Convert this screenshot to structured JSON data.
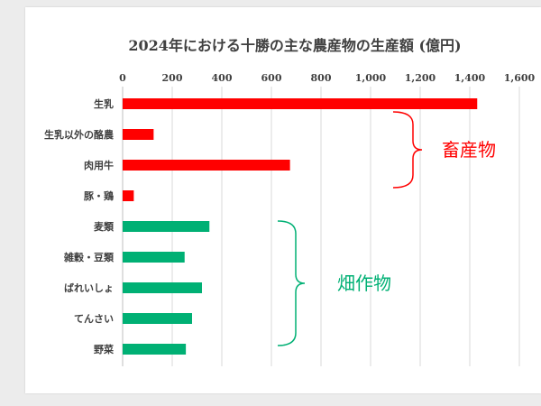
{
  "chart_data": {
    "type": "bar",
    "orientation": "horizontal",
    "title": "2024年における十勝の主な農産物の生産額 (億円)",
    "xlim": [
      0,
      1600
    ],
    "x_ticks": [
      "0",
      "200",
      "400",
      "600",
      "800",
      "1,000",
      "1,200",
      "1,400",
      "1,600"
    ],
    "x_tick_values": [
      0,
      200,
      400,
      600,
      800,
      1000,
      1200,
      1400,
      1600
    ],
    "grid": true,
    "categories": [
      "生乳",
      "生乳以外の酪農",
      "肉用牛",
      "豚・鶏",
      "麦類",
      "雑穀・豆類",
      "ばれいしょ",
      "てんさい",
      "野菜"
    ],
    "values": [
      1430,
      125,
      675,
      45,
      350,
      250,
      320,
      280,
      255
    ],
    "bar_colors": [
      "#ff0000",
      "#ff0000",
      "#ff0000",
      "#ff0000",
      "#00b074",
      "#00b074",
      "#00b074",
      "#00b074",
      "#00b074"
    ],
    "groups": [
      {
        "label": "畜産物",
        "color": "#ff0000",
        "categories": [
          "生乳",
          "生乳以外の酪農",
          "肉用牛",
          "豚・鶏"
        ]
      },
      {
        "label": "畑作物",
        "color": "#00b074",
        "categories": [
          "麦類",
          "雑穀・豆類",
          "ばれいしょ",
          "てんさい",
          "野菜"
        ]
      }
    ]
  }
}
